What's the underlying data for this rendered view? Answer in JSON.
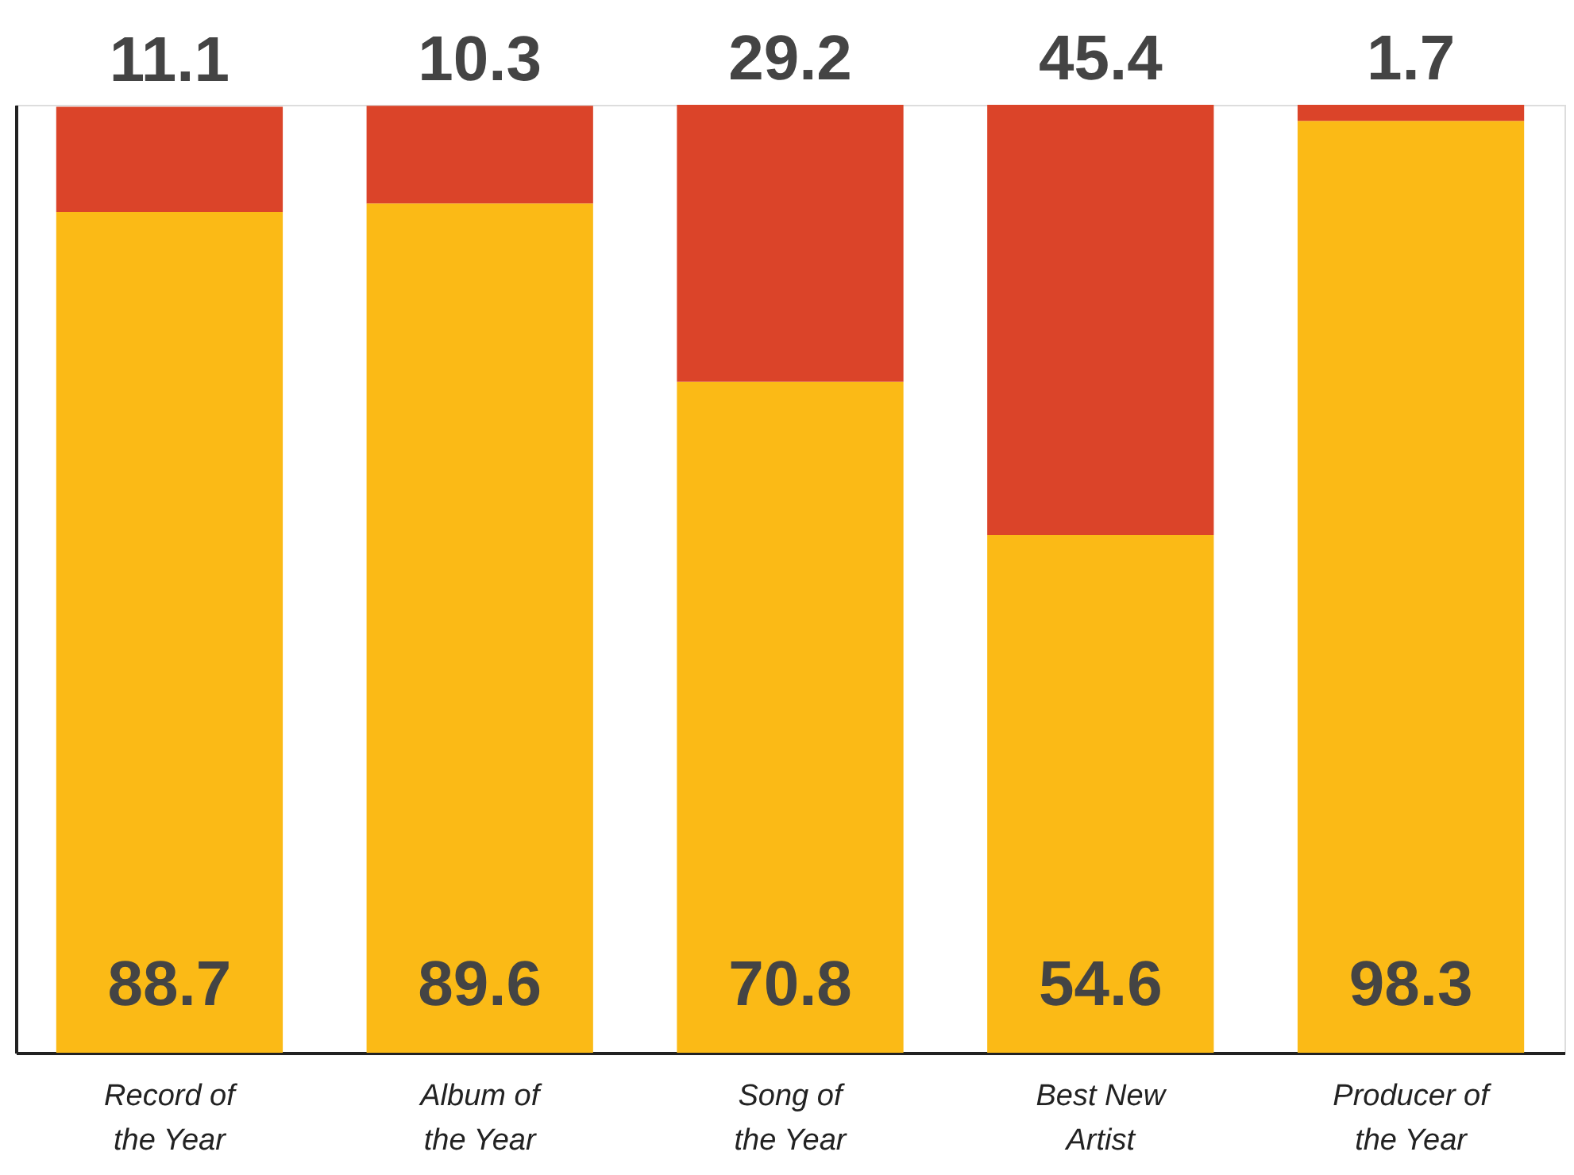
{
  "chart_data": {
    "type": "bar",
    "stacked": true,
    "data_labels": true,
    "tick_labels": false,
    "grid": false,
    "ylim": [
      0,
      100
    ],
    "categories": [
      "Record of the Year",
      "Album of the Year",
      "Song of the Year",
      "Best New Artist",
      "Producer of the Year"
    ],
    "series": [
      {
        "color": "#fbba16",
        "values": [
          88.7,
          89.6,
          70.8,
          54.6,
          98.3
        ]
      },
      {
        "color": "#db4429",
        "values": [
          11.1,
          10.3,
          29.2,
          45.4,
          1.7
        ]
      }
    ]
  }
}
